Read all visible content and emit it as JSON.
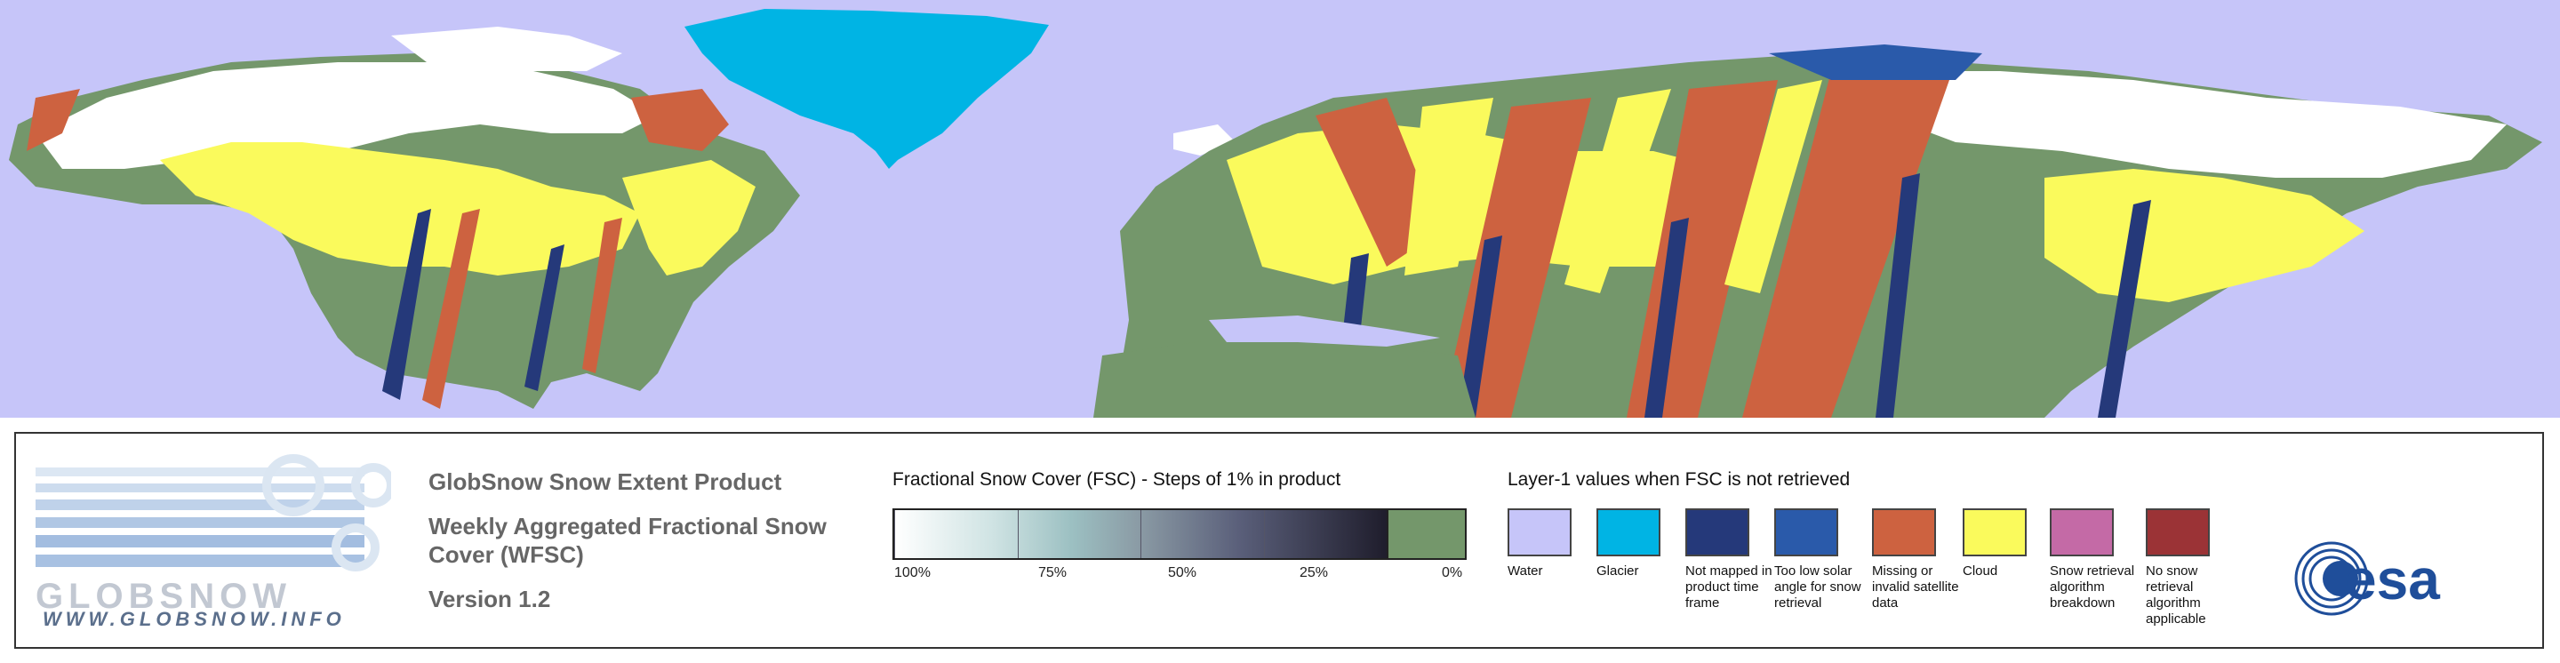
{
  "map": {
    "background": "#c6c5f9",
    "colors": {
      "snow": "#ffffff",
      "land": "#74976b",
      "cloud": "#fafa5c",
      "missing": "#cd6240",
      "not_mapped": "#25397a",
      "glacier": "#00b4e4"
    }
  },
  "logo": {
    "wordmark": "GLOBSNOW",
    "url": "WWW.GLOBSNOW.INFO"
  },
  "product": {
    "line1": "GlobSnow Snow Extent Product",
    "line2": "Weekly Aggregated Fractional Snow Cover (WFSC)",
    "line3": "Version 1.2"
  },
  "fsc": {
    "title": "Fractional Snow Cover (FSC) - Steps of 1% in product",
    "ticks": [
      "100%",
      "75%",
      "50%",
      "25%",
      "0%"
    ]
  },
  "layer1": {
    "title": "Layer-1 values when FSC is not retrieved",
    "items": [
      {
        "label": "Water",
        "color": "#c6c5f9"
      },
      {
        "label": "Glacier",
        "color": "#00b4e4"
      },
      {
        "label": "Not mapped in product time frame",
        "color": "#25397a"
      },
      {
        "label": "Too low solar angle for snow retrieval",
        "color": "#2a5aaa"
      },
      {
        "label": "Missing or invalid satellite data",
        "color": "#cd6240"
      },
      {
        "label": "Cloud",
        "color": "#fafa5c"
      },
      {
        "label": "Snow retrieval algorithm breakdown",
        "color": "#c46aa6"
      },
      {
        "label": "No snow retrieval algorithm applicable",
        "color": "#9b3336"
      }
    ]
  },
  "esa": {
    "logo_text": "esa"
  }
}
